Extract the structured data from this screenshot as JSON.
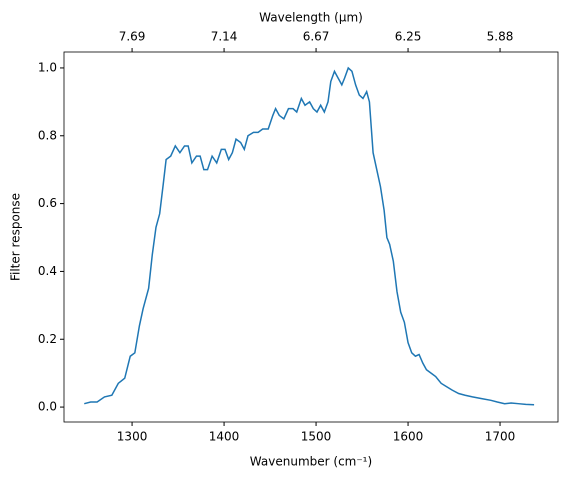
{
  "chart_data": {
    "type": "line",
    "xlabel": "Wavenumber (cm⁻¹)",
    "ylabel": "Filter response",
    "x2label": "Wavelength (μm)",
    "color": "#1f77b4",
    "x": [
      1248,
      1255,
      1262,
      1270,
      1278,
      1285,
      1292,
      1298,
      1303,
      1308,
      1312,
      1318,
      1322,
      1326,
      1330,
      1334,
      1337,
      1342,
      1347,
      1352,
      1357,
      1361,
      1365,
      1370,
      1374,
      1378,
      1382,
      1387,
      1392,
      1397,
      1401,
      1405,
      1409,
      1413,
      1418,
      1422,
      1426,
      1432,
      1437,
      1442,
      1448,
      1453,
      1456,
      1460,
      1465,
      1470,
      1475,
      1479,
      1484,
      1488,
      1493,
      1497,
      1501,
      1505,
      1509,
      1513,
      1516,
      1520,
      1524,
      1528,
      1531,
      1535,
      1539,
      1543,
      1547,
      1551,
      1555,
      1558,
      1562,
      1566,
      1570,
      1574,
      1577,
      1580,
      1584,
      1588,
      1592,
      1596,
      1600,
      1604,
      1608,
      1612,
      1616,
      1620,
      1625,
      1630,
      1636,
      1642,
      1648,
      1655,
      1662,
      1670,
      1680,
      1690,
      1697,
      1705,
      1712,
      1720,
      1728,
      1737
    ],
    "values": [
      0.01,
      0.015,
      0.015,
      0.03,
      0.035,
      0.07,
      0.085,
      0.15,
      0.16,
      0.24,
      0.29,
      0.35,
      0.45,
      0.53,
      0.57,
      0.66,
      0.73,
      0.74,
      0.77,
      0.75,
      0.77,
      0.77,
      0.72,
      0.74,
      0.74,
      0.7,
      0.7,
      0.74,
      0.72,
      0.76,
      0.76,
      0.73,
      0.75,
      0.79,
      0.78,
      0.76,
      0.8,
      0.81,
      0.81,
      0.82,
      0.82,
      0.86,
      0.88,
      0.86,
      0.85,
      0.88,
      0.88,
      0.87,
      0.91,
      0.89,
      0.9,
      0.88,
      0.87,
      0.89,
      0.87,
      0.9,
      0.96,
      0.99,
      0.97,
      0.95,
      0.97,
      1.0,
      0.99,
      0.95,
      0.92,
      0.91,
      0.93,
      0.9,
      0.75,
      0.7,
      0.65,
      0.58,
      0.5,
      0.48,
      0.43,
      0.34,
      0.28,
      0.25,
      0.19,
      0.16,
      0.15,
      0.155,
      0.13,
      0.11,
      0.1,
      0.09,
      0.07,
      0.06,
      0.05,
      0.04,
      0.035,
      0.03,
      0.025,
      0.02,
      0.015,
      0.01,
      0.012,
      0.01,
      0.008,
      0.007
    ],
    "xlim": [
      1226,
      1763
    ],
    "ylim": [
      -0.044,
      1.047
    ],
    "xticks": [
      1300,
      1400,
      1500,
      1600,
      1700
    ],
    "yticks": [
      {
        "value": 0,
        "label": "0.0"
      },
      {
        "value": 0.2,
        "label": "0.2"
      },
      {
        "value": 0.4,
        "label": "0.4"
      },
      {
        "value": 0.6,
        "label": "0.6"
      },
      {
        "value": 0.8,
        "label": "0.8"
      },
      {
        "value": 1,
        "label": "1.0"
      }
    ],
    "x2ticks": [
      {
        "value": 1300,
        "label": "7.69"
      },
      {
        "value": 1400,
        "label": "7.14"
      },
      {
        "value": 1500,
        "label": "6.67"
      },
      {
        "value": 1600,
        "label": "6.25"
      },
      {
        "value": 1700,
        "label": "5.88"
      }
    ]
  }
}
